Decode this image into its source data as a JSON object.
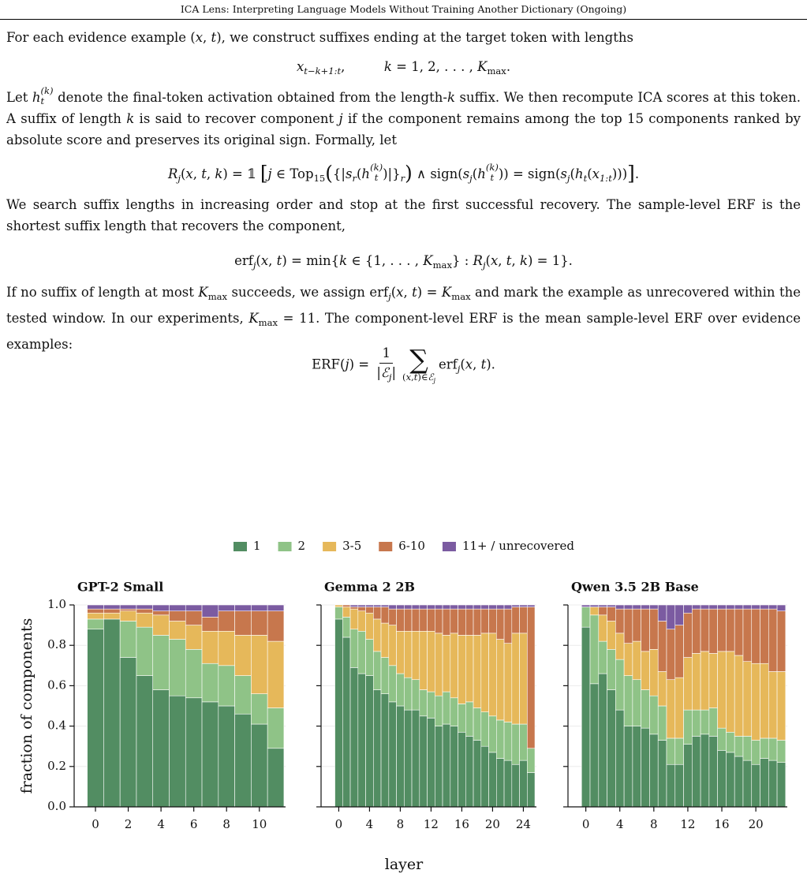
{
  "header": {
    "title": "ICA Lens: Interpreting Language Models Without Training Another Dictionary (Ongoing)"
  },
  "paragraphs": [
    [
      "For each evidence example (",
      {
        "text": "x",
        "style": "it"
      },
      ", ",
      {
        "text": "t",
        "style": "it"
      },
      "), we construct suffixes ending at the target token with lengths"
    ],
    [
      "Let ",
      {
        "text": "h",
        "style": "it"
      },
      {
        "sup": "(k)",
        "sub": "t"
      },
      " denote the final-token activation obtained from the length-",
      {
        "text": "k",
        "style": "it"
      },
      " suffix. We then recompute ICA scores at this token. A suffix of length ",
      {
        "text": "k",
        "style": "it"
      },
      " is said to recover component ",
      {
        "text": "j",
        "style": "it"
      },
      " if the component remains among the top 15 components ranked by absolute score and preserves its original sign. Formally, let"
    ],
    [
      "We search suffix lengths in increasing order and stop at the first successful recovery. The sample-level ERF is the shortest suffix length that recovers the component,"
    ],
    [
      "If no suffix of length at most ",
      {
        "text": "K",
        "style": "it"
      },
      {
        "text": "max",
        "style": "sub"
      },
      " succeeds, we assign erf",
      {
        "text": "j",
        "style": "itsub"
      },
      "(",
      {
        "text": "x",
        "style": "it"
      },
      ", ",
      {
        "text": "t",
        "style": "it"
      },
      ") = ",
      {
        "text": "K",
        "style": "it"
      },
      {
        "text": "max",
        "style": "sub"
      },
      " and mark the example as unrecovered within the tested window. In our experiments, ",
      {
        "text": "K",
        "style": "it"
      },
      {
        "text": "max",
        "style": "sub"
      },
      " = 11. The component-level ERF is the mean sample-level ERF over evidence examples:"
    ]
  ],
  "equations": [
    [
      {
        "text": "x",
        "style": "it"
      },
      {
        "text": "t−k+1:t",
        "style": "itsub"
      },
      {
        "text": ",",
        "style": "gap"
      },
      {
        "text": "k",
        "style": "it"
      },
      " = 1, 2, . . . , ",
      {
        "text": "K",
        "style": "it"
      },
      {
        "text": "max",
        "style": "sub"
      },
      "."
    ],
    [
      {
        "text": "R",
        "style": "it"
      },
      {
        "text": "j",
        "style": "itsub"
      },
      "(",
      {
        "text": "x",
        "style": "it"
      },
      ", ",
      {
        "text": "t",
        "style": "it"
      },
      ", ",
      {
        "text": "k",
        "style": "it"
      },
      ") = 𝟙 ",
      {
        "text": "[",
        "style": "big"
      },
      {
        "text": "j",
        "style": "it"
      },
      " ∈ Top",
      {
        "text": "15",
        "style": "sub"
      },
      {
        "text": "(",
        "style": "big"
      },
      "{|",
      {
        "text": "s",
        "style": "it"
      },
      {
        "text": "r",
        "style": "itsub"
      },
      "(",
      {
        "text": "h",
        "style": "it"
      },
      {
        "sup": "(k)",
        "sub": "t"
      },
      ")|}",
      {
        "text": "r",
        "style": "itsub"
      },
      {
        "text": ")",
        "style": "big"
      },
      " ∧ sign(",
      {
        "text": "s",
        "style": "it"
      },
      {
        "text": "j",
        "style": "itsub"
      },
      "(",
      {
        "text": "h",
        "style": "it"
      },
      {
        "sup": "(k)",
        "sub": "t"
      },
      ")) = sign(",
      {
        "text": "s",
        "style": "it"
      },
      {
        "text": "j",
        "style": "itsub"
      },
      "(",
      {
        "text": "h",
        "style": "it"
      },
      {
        "text": "t",
        "style": "itsub"
      },
      "(",
      {
        "text": "x",
        "style": "it"
      },
      {
        "text": "1:t",
        "style": "itsub"
      },
      ")))",
      {
        "text": "]",
        "style": "big"
      },
      "."
    ],
    [
      "erf",
      {
        "text": "j",
        "style": "itsub"
      },
      "(",
      {
        "text": "x",
        "style": "it"
      },
      ", ",
      {
        "text": "t",
        "style": "it"
      },
      ") = min{",
      {
        "text": "k",
        "style": "it"
      },
      " ∈ {1, . . . , ",
      {
        "text": "K",
        "style": "it"
      },
      {
        "text": "max",
        "style": "sub"
      },
      "} : ",
      {
        "text": "R",
        "style": "it"
      },
      {
        "text": "j",
        "style": "itsub"
      },
      "(",
      {
        "text": "x",
        "style": "it"
      },
      ", ",
      {
        "text": "t",
        "style": "it"
      },
      ", ",
      {
        "text": "k",
        "style": "it"
      },
      ") = 1}."
    ],
    {
      "lhs": [
        "ERF(",
        {
          "text": "j",
          "style": "it"
        },
        ") = "
      ],
      "num": "1",
      "den": [
        "|",
        {
          "text": "ℰ",
          "style": "it"
        },
        {
          "text": "j",
          "style": "itsub"
        },
        "|"
      ],
      "sum": "∑",
      "under": [
        "(",
        {
          "text": "x",
          "style": "it"
        },
        ",",
        {
          "text": "t",
          "style": "it"
        },
        ")∈",
        {
          "text": "ℰ",
          "style": "it"
        },
        {
          "text": "j",
          "style": "itsub"
        }
      ],
      "rhs": [
        "erf",
        {
          "text": "j",
          "style": "itsub"
        },
        "(",
        {
          "text": "x",
          "style": "it"
        },
        ", ",
        {
          "text": "t",
          "style": "it"
        },
        ")."
      ]
    }
  ],
  "chart_data": [
    {
      "type": "stacked_bar",
      "title": "GPT-2 Small",
      "y_label": "fraction of components",
      "x": [
        0,
        1,
        2,
        3,
        4,
        5,
        6,
        7,
        8,
        9,
        10,
        11
      ],
      "xlim": [
        -1.3,
        11.6
      ],
      "xticks": [
        0,
        2,
        4,
        6,
        8,
        10
      ],
      "ylim": [
        0,
        1
      ],
      "yticks": [
        {
          "value": 0,
          "label": "0.0"
        },
        0.2,
        0.4,
        0.6,
        0.8,
        {
          "value": 1,
          "label": "1.0"
        }
      ],
      "grid": true,
      "series": [
        {
          "name": "1",
          "color": "#528d62",
          "values": [
            0.88,
            0.93,
            0.74,
            0.65,
            0.58,
            0.55,
            0.54,
            0.52,
            0.5,
            0.46,
            0.41,
            0.29
          ]
        },
        {
          "name": "2",
          "color": "#8fc387",
          "values": [
            0.05,
            0.0,
            0.18,
            0.24,
            0.27,
            0.28,
            0.24,
            0.19,
            0.2,
            0.19,
            0.15,
            0.2
          ]
        },
        {
          "name": "3-5",
          "color": "#e6b85a",
          "values": [
            0.03,
            0.03,
            0.05,
            0.07,
            0.1,
            0.09,
            0.12,
            0.16,
            0.17,
            0.2,
            0.29,
            0.33
          ]
        },
        {
          "name": "6-10",
          "color": "#c7774d",
          "values": [
            0.02,
            0.02,
            0.01,
            0.02,
            0.02,
            0.05,
            0.07,
            0.07,
            0.1,
            0.12,
            0.12,
            0.15
          ]
        },
        {
          "name": "11+ / unrecovered",
          "color": "#7b5ba1",
          "values": [
            0.02,
            0.02,
            0.02,
            0.02,
            0.03,
            0.03,
            0.03,
            0.06,
            0.03,
            0.03,
            0.03,
            0.03
          ]
        }
      ]
    },
    {
      "type": "stacked_bar",
      "title": "Gemma 2 2B",
      "x_label": "layer",
      "sharey": true,
      "x": [
        0,
        1,
        2,
        3,
        4,
        5,
        6,
        7,
        8,
        9,
        10,
        11,
        12,
        13,
        14,
        15,
        16,
        17,
        18,
        19,
        20,
        21,
        22,
        23,
        24,
        25
      ],
      "xlim": [
        -2.3,
        25.7
      ],
      "xticks": [
        0,
        4,
        8,
        12,
        16,
        20,
        24
      ],
      "ylim": [
        0,
        1
      ],
      "yticks": [
        0,
        0.2,
        0.4,
        0.6,
        0.8,
        1
      ],
      "grid": true,
      "series": [
        {
          "color": "#528d62",
          "values": [
            0.93,
            0.84,
            0.69,
            0.66,
            0.65,
            0.58,
            0.56,
            0.52,
            0.5,
            0.48,
            0.48,
            0.45,
            0.44,
            0.4,
            0.41,
            0.4,
            0.37,
            0.35,
            0.33,
            0.3,
            0.27,
            0.24,
            0.23,
            0.21,
            0.23,
            0.17
          ]
        },
        {
          "color": "#8fc387",
          "values": [
            0.06,
            0.1,
            0.19,
            0.21,
            0.18,
            0.19,
            0.18,
            0.18,
            0.16,
            0.16,
            0.15,
            0.13,
            0.13,
            0.15,
            0.16,
            0.14,
            0.14,
            0.17,
            0.16,
            0.17,
            0.18,
            0.19,
            0.19,
            0.2,
            0.18,
            0.12
          ]
        },
        {
          "color": "#e6b85a",
          "values": [
            0.01,
            0.05,
            0.1,
            0.1,
            0.13,
            0.16,
            0.17,
            0.2,
            0.21,
            0.23,
            0.24,
            0.29,
            0.3,
            0.31,
            0.28,
            0.32,
            0.34,
            0.33,
            0.36,
            0.39,
            0.41,
            0.4,
            0.39,
            0.45,
            0.45,
            0.0
          ]
        },
        {
          "color": "#c7774d",
          "values": [
            0.0,
            0.01,
            0.01,
            0.02,
            0.03,
            0.06,
            0.08,
            0.08,
            0.11,
            0.11,
            0.11,
            0.11,
            0.11,
            0.12,
            0.13,
            0.12,
            0.13,
            0.13,
            0.13,
            0.12,
            0.12,
            0.15,
            0.17,
            0.13,
            0.13,
            0.7
          ]
        },
        {
          "color": "#7b5ba1",
          "values": [
            0.0,
            0.0,
            0.01,
            0.01,
            0.01,
            0.01,
            0.01,
            0.02,
            0.02,
            0.02,
            0.02,
            0.02,
            0.02,
            0.02,
            0.02,
            0.02,
            0.02,
            0.02,
            0.02,
            0.02,
            0.02,
            0.02,
            0.02,
            0.01,
            0.01,
            0.01
          ]
        }
      ]
    },
    {
      "type": "stacked_bar",
      "title": "Qwen 3.5 2B Base",
      "sharey": true,
      "x": [
        0,
        1,
        2,
        3,
        4,
        5,
        6,
        7,
        8,
        9,
        10,
        11,
        12,
        13,
        14,
        15,
        16,
        17,
        18,
        19,
        20,
        21,
        22,
        23
      ],
      "xlim": [
        -2.1,
        23.7
      ],
      "xticks": [
        0,
        4,
        8,
        12,
        16,
        20
      ],
      "ylim": [
        0,
        1
      ],
      "yticks": [
        0,
        0.2,
        0.4,
        0.6,
        0.8,
        1
      ],
      "grid": true,
      "series": [
        {
          "color": "#528d62",
          "values": [
            0.89,
            0.61,
            0.66,
            0.58,
            0.48,
            0.4,
            0.4,
            0.39,
            0.36,
            0.33,
            0.21,
            0.21,
            0.31,
            0.35,
            0.36,
            0.35,
            0.28,
            0.27,
            0.25,
            0.23,
            0.21,
            0.24,
            0.23,
            0.22
          ]
        },
        {
          "color": "#8fc387",
          "values": [
            0.1,
            0.34,
            0.16,
            0.2,
            0.25,
            0.25,
            0.23,
            0.19,
            0.19,
            0.17,
            0.13,
            0.13,
            0.17,
            0.13,
            0.12,
            0.14,
            0.11,
            0.1,
            0.1,
            0.12,
            0.12,
            0.1,
            0.11,
            0.11
          ]
        },
        {
          "color": "#e6b85a",
          "values": [
            0.0,
            0.04,
            0.13,
            0.14,
            0.13,
            0.16,
            0.19,
            0.19,
            0.23,
            0.17,
            0.29,
            0.3,
            0.26,
            0.28,
            0.29,
            0.27,
            0.38,
            0.4,
            0.4,
            0.37,
            0.38,
            0.37,
            0.33,
            0.34
          ]
        },
        {
          "color": "#c7774d",
          "values": [
            0.0,
            0.0,
            0.04,
            0.07,
            0.12,
            0.17,
            0.16,
            0.21,
            0.2,
            0.25,
            0.25,
            0.26,
            0.22,
            0.22,
            0.21,
            0.22,
            0.21,
            0.21,
            0.23,
            0.26,
            0.27,
            0.27,
            0.31,
            0.3
          ]
        },
        {
          "color": "#7b5ba1",
          "values": [
            0.01,
            0.01,
            0.01,
            0.01,
            0.02,
            0.02,
            0.02,
            0.02,
            0.02,
            0.08,
            0.12,
            0.1,
            0.04,
            0.02,
            0.02,
            0.02,
            0.02,
            0.02,
            0.02,
            0.02,
            0.02,
            0.02,
            0.02,
            0.03
          ]
        }
      ]
    }
  ]
}
